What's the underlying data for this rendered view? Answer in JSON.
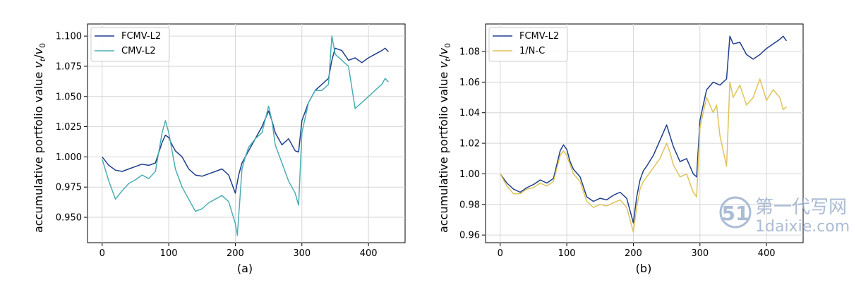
{
  "chart_data": [
    {
      "type": "line",
      "panel_label": "(a)",
      "ylabel_main": "accumulative portfolio value ",
      "ylabel_math": "v",
      "ylabel_sub_t": "t",
      "ylabel_slash": "/",
      "ylabel_sub_0": "0",
      "xlim": [
        -22,
        455
      ],
      "ylim": [
        0.929,
        1.11
      ],
      "xticks": [
        0,
        100,
        200,
        300,
        400
      ],
      "xtick_labels": [
        "0",
        "100",
        "200",
        "300",
        "400"
      ],
      "yticks": [
        0.95,
        0.975,
        1.0,
        1.025,
        1.05,
        1.075,
        1.1
      ],
      "ytick_labels": [
        "0.950",
        "0.975",
        "1.000",
        "1.025",
        "1.050",
        "1.075",
        "1.100"
      ],
      "legend_position": "upper-left",
      "series": [
        {
          "name": "FCMV-L2",
          "color": "#1f3f8c",
          "x": [
            0,
            10,
            20,
            30,
            40,
            50,
            60,
            70,
            80,
            90,
            95,
            100,
            105,
            110,
            120,
            130,
            140,
            150,
            160,
            170,
            180,
            190,
            200,
            205,
            210,
            215,
            220,
            230,
            240,
            250,
            255,
            260,
            270,
            280,
            290,
            295,
            300,
            310,
            320,
            330,
            340,
            345,
            350,
            360,
            370,
            380,
            390,
            400,
            410,
            420,
            425,
            430
          ],
          "values": [
            1.0,
            0.993,
            0.989,
            0.988,
            0.99,
            0.992,
            0.994,
            0.993,
            0.995,
            1.012,
            1.018,
            1.016,
            1.01,
            1.005,
            1.0,
            0.99,
            0.985,
            0.984,
            0.986,
            0.988,
            0.99,
            0.985,
            0.97,
            0.985,
            0.995,
            1.0,
            1.005,
            1.015,
            1.025,
            1.038,
            1.03,
            1.02,
            1.01,
            1.015,
            1.005,
            1.004,
            1.03,
            1.045,
            1.055,
            1.06,
            1.065,
            1.08,
            1.09,
            1.088,
            1.08,
            1.082,
            1.078,
            1.082,
            1.085,
            1.088,
            1.09,
            1.087
          ]
        },
        {
          "name": "CMV-L2",
          "color": "#4aaeb4",
          "x": [
            0,
            10,
            20,
            30,
            40,
            50,
            60,
            70,
            80,
            90,
            95,
            100,
            105,
            110,
            120,
            130,
            140,
            150,
            160,
            170,
            180,
            190,
            200,
            203,
            210,
            215,
            220,
            230,
            240,
            250,
            255,
            260,
            270,
            280,
            290,
            295,
            300,
            310,
            320,
            330,
            340,
            345,
            350,
            360,
            370,
            380,
            390,
            400,
            410,
            420,
            425,
            430
          ],
          "values": [
            0.998,
            0.98,
            0.965,
            0.972,
            0.978,
            0.981,
            0.985,
            0.982,
            0.988,
            1.02,
            1.03,
            1.02,
            1.005,
            0.99,
            0.975,
            0.965,
            0.955,
            0.957,
            0.962,
            0.965,
            0.968,
            0.963,
            0.945,
            0.935,
            0.99,
            1.0,
            1.008,
            1.015,
            1.02,
            1.042,
            1.03,
            1.01,
            0.995,
            0.98,
            0.97,
            0.96,
            1.02,
            1.045,
            1.055,
            1.055,
            1.06,
            1.1,
            1.085,
            1.08,
            1.075,
            1.04,
            1.045,
            1.05,
            1.055,
            1.06,
            1.065,
            1.062
          ]
        }
      ]
    },
    {
      "type": "line",
      "panel_label": "(b)",
      "ylabel_main": "accumulative portfolio value ",
      "ylabel_math": "v",
      "ylabel_sub_t": "t",
      "ylabel_slash": "/",
      "ylabel_sub_0": "0",
      "xlim": [
        -22,
        455
      ],
      "ylim": [
        0.955,
        1.098
      ],
      "xticks": [
        0,
        100,
        200,
        300,
        400
      ],
      "xtick_labels": [
        "0",
        "100",
        "200",
        "300",
        "400"
      ],
      "yticks": [
        0.96,
        0.98,
        1.0,
        1.02,
        1.04,
        1.06,
        1.08
      ],
      "ytick_labels": [
        "0.96",
        "0.98",
        "1.00",
        "1.02",
        "1.04",
        "1.06",
        "1.08"
      ],
      "legend_position": "upper-left",
      "series": [
        {
          "name": "FCMV-L2",
          "color": "#1f3f8c",
          "x": [
            0,
            10,
            20,
            30,
            40,
            50,
            60,
            70,
            80,
            90,
            95,
            100,
            105,
            110,
            120,
            130,
            140,
            150,
            160,
            170,
            180,
            190,
            200,
            205,
            210,
            215,
            220,
            230,
            240,
            250,
            255,
            260,
            270,
            280,
            290,
            295,
            300,
            310,
            320,
            330,
            340,
            345,
            350,
            360,
            370,
            380,
            390,
            400,
            410,
            420,
            425,
            430
          ],
          "values": [
            1.0,
            0.994,
            0.99,
            0.988,
            0.991,
            0.993,
            0.996,
            0.994,
            0.997,
            1.015,
            1.019,
            1.016,
            1.008,
            1.003,
            0.998,
            0.985,
            0.982,
            0.984,
            0.983,
            0.986,
            0.988,
            0.984,
            0.968,
            0.985,
            0.996,
            1.002,
            1.005,
            1.012,
            1.022,
            1.032,
            1.025,
            1.018,
            1.008,
            1.01,
            1.0,
            0.998,
            1.035,
            1.055,
            1.06,
            1.058,
            1.062,
            1.09,
            1.085,
            1.086,
            1.078,
            1.075,
            1.078,
            1.082,
            1.085,
            1.088,
            1.09,
            1.087
          ]
        },
        {
          "name": "1/N-C",
          "color": "#dfc35a",
          "x": [
            0,
            10,
            20,
            30,
            40,
            50,
            60,
            70,
            80,
            90,
            95,
            100,
            105,
            110,
            120,
            130,
            140,
            150,
            160,
            170,
            180,
            190,
            200,
            205,
            210,
            215,
            220,
            230,
            240,
            250,
            255,
            260,
            270,
            280,
            290,
            295,
            300,
            310,
            320,
            325,
            330,
            340,
            345,
            350,
            360,
            370,
            380,
            390,
            400,
            410,
            420,
            425,
            430
          ],
          "values": [
            1.0,
            0.992,
            0.987,
            0.987,
            0.99,
            0.991,
            0.994,
            0.992,
            0.995,
            1.012,
            1.015,
            1.012,
            1.006,
            1.0,
            0.995,
            0.982,
            0.978,
            0.98,
            0.979,
            0.981,
            0.983,
            0.978,
            0.962,
            0.978,
            0.99,
            0.995,
            0.998,
            1.004,
            1.01,
            1.02,
            1.014,
            1.006,
            0.998,
            1.0,
            0.988,
            0.985,
            1.03,
            1.05,
            1.04,
            1.045,
            1.025,
            1.005,
            1.06,
            1.05,
            1.058,
            1.045,
            1.05,
            1.062,
            1.048,
            1.055,
            1.05,
            1.042,
            1.044
          ]
        }
      ]
    }
  ],
  "watermark": {
    "top_text": "第一代写网",
    "bottom_text": "1daixie.com",
    "logo_text": "51"
  }
}
